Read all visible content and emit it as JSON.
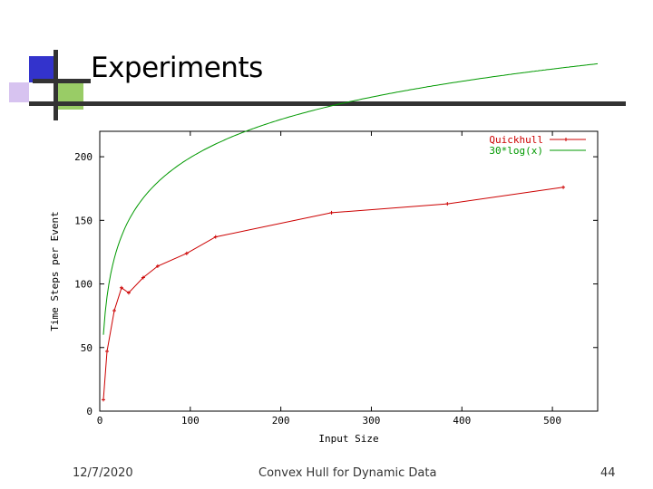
{
  "slide": {
    "title": "Experiments",
    "footer_date": "12/7/2020",
    "footer_center": "Convex Hull for Dynamic Data",
    "footer_page": "44"
  },
  "colors": {
    "quickhull": "#cc0000",
    "log_curve": "#009900",
    "accent_blue": "#3333cc",
    "accent_green": "#99cc66",
    "accent_purple": "#d7c3f0",
    "tick_text": "#000000"
  },
  "chart_data": {
    "type": "line",
    "xlabel": "Input Size",
    "ylabel": "Time Steps per Event",
    "xlim": [
      0,
      550
    ],
    "ylim": [
      0,
      220
    ],
    "xticks": [
      0,
      100,
      200,
      300,
      400,
      500
    ],
    "yticks": [
      0,
      50,
      100,
      150,
      200
    ],
    "grid": false,
    "legend_position": "top-right",
    "series": [
      {
        "name": "Quickhull",
        "x": [
          4,
          8,
          16,
          24,
          32,
          48,
          64,
          96,
          128,
          256,
          384,
          512
        ],
        "y": [
          9,
          47,
          79,
          97,
          93,
          105,
          114,
          124,
          137,
          156,
          163,
          176
        ],
        "marker": "cross"
      },
      {
        "name": "30*log(x)",
        "function": "30*log(x)",
        "x_range": [
          4,
          550
        ],
        "marker": "none"
      }
    ]
  }
}
